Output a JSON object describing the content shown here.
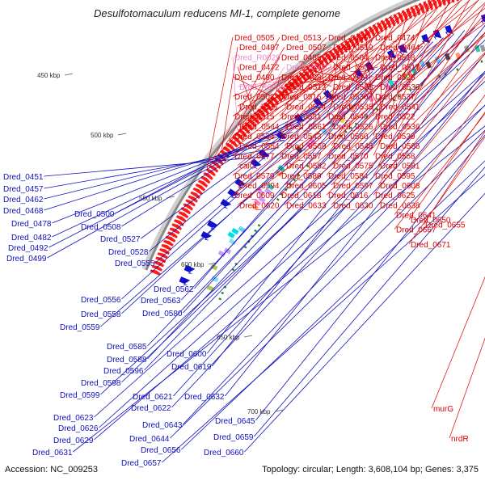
{
  "title": "Desulfotomaculum reducens MI-1, complete genome",
  "accession": "Accession: NC_009253",
  "topology": "Topology: circular; Length: 3,608,104 bp; Genes: 3,375",
  "colors": {
    "forward_arrow": "#ff1a1a",
    "reverse_arrow": "#1010d0",
    "forward_label": "#dd0000",
    "reverse_label": "#1010bb",
    "rna_label": "#ee88cc",
    "backbone": "#888888",
    "gc_tick": "#1a8a1a"
  },
  "ticks": [
    "450 kbp",
    "500 kbp",
    "550 kbp",
    "600 kbp",
    "650 kbp",
    "700 kbp"
  ],
  "reverse_labels": [
    "Dred_0451",
    "Dred_0457",
    "Dred_0462",
    "Dred_0468",
    "Dred_0478",
    "Dred_0482",
    "Dred_0492",
    "Dred_0499",
    "Dred_0500",
    "Dred_0508",
    "Dred_0527",
    "Dred_0528",
    "Dred_0555",
    "Dred_0556",
    "Dred_0562",
    "Dred_0558",
    "Dred_0563",
    "Dred_0559",
    "Dred_0580",
    "Dred_0585",
    "Dred_0588",
    "Dred_0600",
    "Dred_0596",
    "Dred_0619",
    "Dred_0598",
    "Dred_0599",
    "Dred_0621",
    "Dred_0632",
    "Dred_0622",
    "Dred_0623",
    "Dred_0626",
    "Dred_0643",
    "Dred_0645",
    "Dred_0629",
    "Dred_0644",
    "Dred_0659",
    "Dred_0631",
    "Dred_0656",
    "Dred_0660",
    "Dred_0657"
  ],
  "forward_labels": [
    "Dred_0505",
    "Dred_0513",
    "Dred_0456",
    "Dred_0474",
    "Dred_0487",
    "Dred_0507",
    "Dred_0519",
    "Dred_0464",
    "Dred_R0029",
    "Dred_0485",
    "Dred_0504",
    "Dred_0518",
    "Dred_0472",
    "Dred_R0032",
    "Dred_0509",
    "Dred_0517",
    "Dred_0480",
    "Dred_0498",
    "Dred_0514",
    "Dred_0525",
    "Dred_R0041",
    "Dred_0512",
    "Dred_0523",
    "Dred_0533",
    "Dred_0502",
    "Dred_0516",
    "Dred_0530",
    "Dred_0537",
    "Dred_0511",
    "Dred_0524",
    "Dred_0535",
    "Dred_0541",
    "Dred_0515",
    "Dred_0531",
    "Dred_0540",
    "Dred_0522",
    "Dred_0544",
    "Dred_0561",
    "Dred_0526",
    "Dred_0536",
    "Dred_0534",
    "Dred_0543",
    "Dred_0560",
    "Dred_0539",
    "Dred_0554",
    "Dred_0569",
    "Dred_0548",
    "Dred_0566",
    "Dred_0577",
    "Dred_0557",
    "Dred_0570",
    "Dred_0568",
    "caiC",
    "Dred_0582",
    "Dred_0575",
    "Dred_0581",
    "Dred_0579",
    "Dred_0586",
    "Dred_0584",
    "Dred_0595",
    "Dred_0594",
    "Dred_0605",
    "Dred_0597",
    "Dred_0608",
    "Dred_0609",
    "Dred_0618",
    "Dred_0616",
    "Dred_0625",
    "Dred_0620",
    "Dred_0633",
    "Dred_0630",
    "Dred_0638",
    "Dred_0641",
    "Dred_0650",
    "Dred_0655",
    "Dred_0667",
    "Dred_0671",
    "murG",
    "nrdR"
  ]
}
